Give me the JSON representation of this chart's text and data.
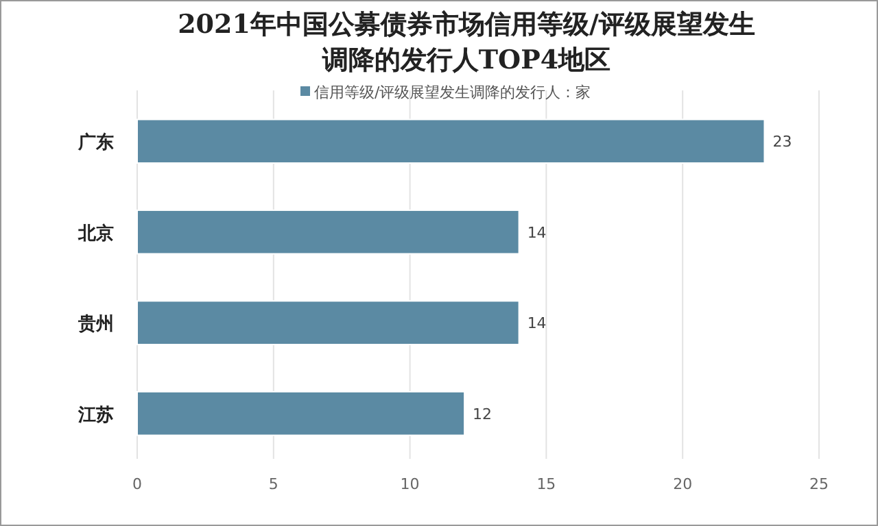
{
  "chart_data": {
    "type": "bar",
    "orientation": "horizontal",
    "title": "2021年中国公募债券市场信用等级/评级展望发生调降的发行人TOP4地区",
    "categories": [
      "广东",
      "北京",
      "贵州",
      "江苏"
    ],
    "series": [
      {
        "name": "信用等级/评级展望发生调降的发行人：家",
        "color": "#5b8aa3",
        "values": [
          23,
          14,
          14,
          12
        ]
      }
    ],
    "data_labels": true,
    "xlim": [
      0,
      25
    ],
    "xticks": [
      0,
      5,
      10,
      15,
      20,
      25
    ],
    "grid": "x",
    "legend": "top"
  }
}
